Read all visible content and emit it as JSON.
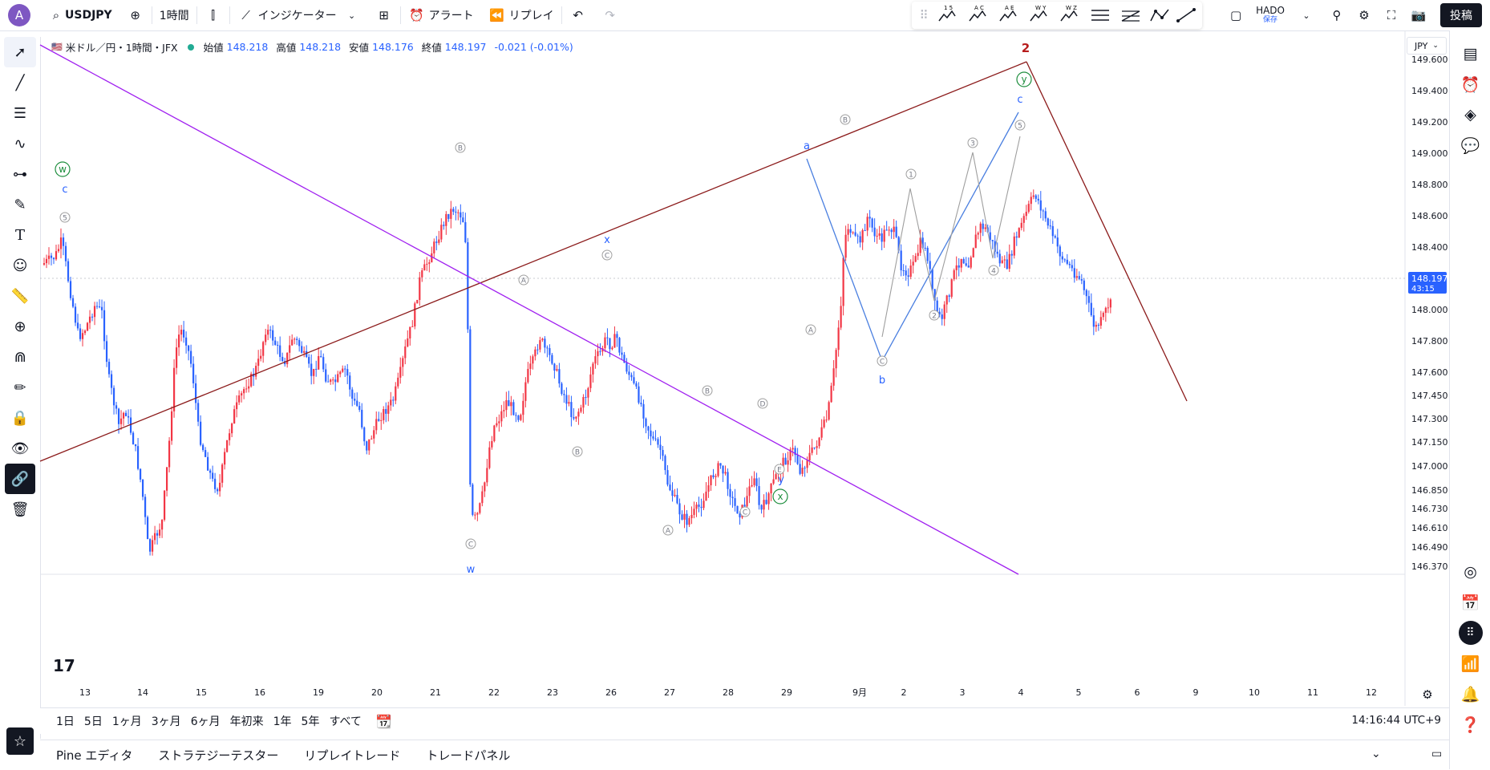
{
  "topbar": {
    "avatar": "A",
    "symbol": "USDJPY",
    "interval": "1時間",
    "indicators": "インジケーター",
    "alert": "アラート",
    "replay": "リプレイ",
    "layout_name": "HADO",
    "layout_status": "保存",
    "post": "投稿",
    "draw_tool_labels": [
      "1 5",
      "A C",
      "A E",
      "W Y",
      "W Z"
    ]
  },
  "legend": {
    "title": "米ドル／円・1時間・JFX",
    "open_label": "始値",
    "open": "148.218",
    "high_label": "高値",
    "high": "148.218",
    "low_label": "安値",
    "low": "148.176",
    "close_label": "終値",
    "close": "148.197",
    "change": "-0.021 (-0.01%)"
  },
  "price_axis": {
    "currency": "JPY",
    "ticks": [
      "149.600",
      "149.400",
      "149.200",
      "149.000",
      "148.800",
      "148.600",
      "148.400",
      "148.000",
      "147.800",
      "147.600",
      "147.450",
      "147.300",
      "147.150",
      "147.000",
      "146.850",
      "146.730",
      "146.610",
      "146.490",
      "146.370"
    ],
    "current_price": "148.197",
    "countdown": "43:15"
  },
  "time_axis": {
    "ticks": [
      "13",
      "14",
      "15",
      "16",
      "19",
      "20",
      "21",
      "22",
      "23",
      "26",
      "27",
      "28",
      "29",
      "9月",
      "2",
      "3",
      "4",
      "5",
      "6",
      "9",
      "10",
      "11",
      "12"
    ]
  },
  "wave_labels": [
    {
      "text": "w",
      "style": "circle-green"
    },
    {
      "text": "c",
      "style": "blue"
    },
    {
      "text": "5",
      "style": "circle-gray"
    },
    {
      "text": "B",
      "style": "circle-gray"
    },
    {
      "text": "C",
      "style": "circle-gray"
    },
    {
      "text": "w",
      "style": "blue"
    },
    {
      "text": "A",
      "style": "circle-gray"
    },
    {
      "text": "x",
      "style": "blue"
    },
    {
      "text": "C",
      "style": "circle-gray"
    },
    {
      "text": "B",
      "style": "circle-gray"
    },
    {
      "text": "A",
      "style": "circle-gray"
    },
    {
      "text": "B",
      "style": "circle-gray"
    },
    {
      "text": "C",
      "style": "circle-gray"
    },
    {
      "text": "D",
      "style": "circle-gray"
    },
    {
      "text": "E",
      "style": "circle-gray"
    },
    {
      "text": "y",
      "style": "blue"
    },
    {
      "text": "x",
      "style": "circle-green"
    },
    {
      "text": "a",
      "style": "blue"
    },
    {
      "text": "B",
      "style": "circle-gray"
    },
    {
      "text": "A",
      "style": "circle-gray"
    },
    {
      "text": "C",
      "style": "circle-gray"
    },
    {
      "text": "b",
      "style": "blue"
    },
    {
      "text": "1",
      "style": "circle-gray"
    },
    {
      "text": "2",
      "style": "circle-gray"
    },
    {
      "text": "3",
      "style": "circle-gray"
    },
    {
      "text": "4",
      "style": "circle-gray"
    },
    {
      "text": "5",
      "style": "circle-gray"
    },
    {
      "text": "c",
      "style": "blue"
    },
    {
      "text": "y",
      "style": "circle-green"
    },
    {
      "text": "2",
      "style": "dark-red"
    }
  ],
  "bottom": {
    "ranges": [
      "1日",
      "5日",
      "1ヶ月",
      "3ヶ月",
      "6ヶ月",
      "年初来",
      "1年",
      "5年",
      "すべて"
    ],
    "clock": "14:16:44 UTC+9"
  },
  "footer": {
    "tabs": [
      "Pine エディタ",
      "ストラテジーテスター",
      "リプレイトレード",
      "トレードパネル"
    ]
  },
  "colors": {
    "up": "#f23645",
    "down": "#2962ff",
    "trend_dark_red": "#8b1a1a",
    "trend_purple": "#a020f0",
    "wave_blue": "#4a7fe0",
    "wave_gray": "#9e9e9e"
  }
}
